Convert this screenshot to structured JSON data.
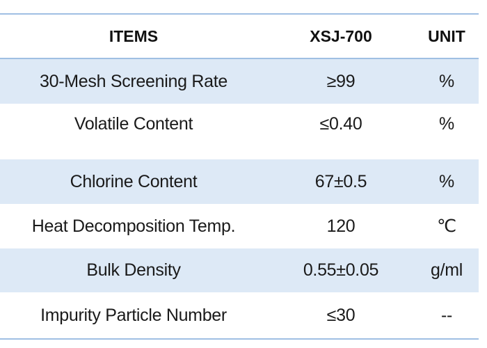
{
  "table": {
    "headers": {
      "item": "ITEMS",
      "value": "XSJ-700",
      "unit": "UNIT"
    },
    "rows": [
      {
        "item": "30-Mesh Screening Rate",
        "value": "≥99",
        "unit": "%"
      },
      {
        "item": "Volatile Content",
        "value": "≤0.40",
        "unit": "%"
      },
      {
        "item": "Chlorine Content",
        "value": "67±0.5",
        "unit": "%"
      },
      {
        "item": "Heat Decomposition Temp.",
        "value": "120",
        "unit": "℃"
      },
      {
        "item": "Bulk Density",
        "value": "0.55±0.05",
        "unit": "g/ml"
      },
      {
        "item": "Impurity Particle Number",
        "value": "≤30",
        "unit": "--"
      }
    ],
    "colors": {
      "rule": "#9fbfe3",
      "shaded_row": "#dde9f6",
      "text": "#1a1a1a"
    }
  }
}
